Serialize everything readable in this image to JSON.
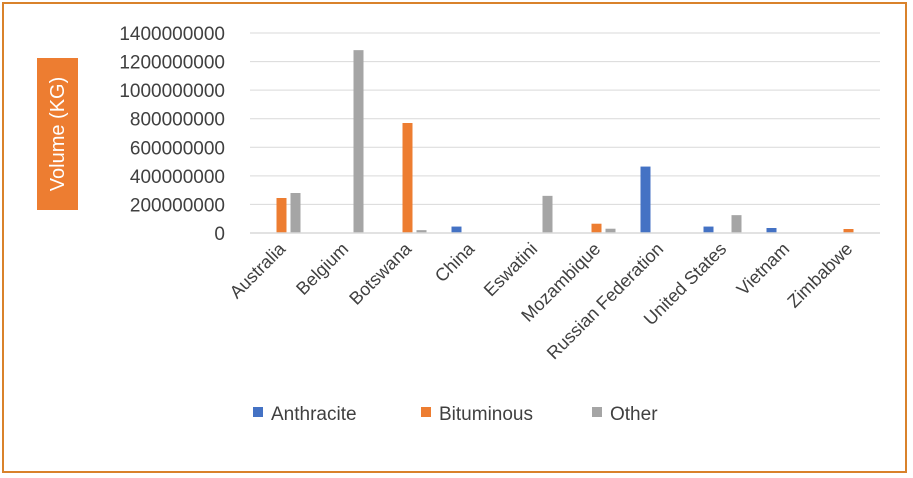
{
  "chart_data": {
    "type": "bar",
    "title": "",
    "xlabel": "",
    "ylabel": "Volume (KG)",
    "ylim": [
      0,
      1400000000
    ],
    "yticks": [
      0,
      200000000,
      400000000,
      600000000,
      800000000,
      1000000000,
      1200000000,
      1400000000
    ],
    "ytick_labels": [
      "0",
      "200000000",
      "400000000",
      "600000000",
      "800000000",
      "1000000000",
      "1200000000",
      "1400000000"
    ],
    "grid": true,
    "legend_position": "bottom",
    "categories": [
      "Australia",
      "Belgium",
      "Botswana",
      "China",
      "Eswatini",
      "Mozambique",
      "Russian Federation",
      "United States",
      "Vietnam",
      "Zimbabwe"
    ],
    "series": [
      {
        "name": "Anthracite",
        "color": "#4472c4",
        "values": [
          0,
          0,
          0,
          45000000,
          0,
          0,
          465000000,
          45000000,
          35000000,
          0
        ]
      },
      {
        "name": "Bituminous",
        "color": "#ed7d31",
        "values": [
          245000000,
          0,
          770000000,
          0,
          0,
          65000000,
          0,
          0,
          0,
          28000000
        ]
      },
      {
        "name": "Other",
        "color": "#a5a5a5",
        "values": [
          280000000,
          1280000000,
          20000000,
          0,
          260000000,
          30000000,
          0,
          125000000,
          0,
          0
        ]
      }
    ]
  }
}
